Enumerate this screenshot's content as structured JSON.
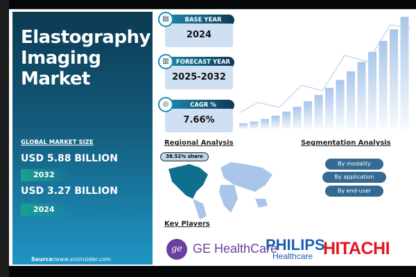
{
  "title": "Elastography Imaging Market",
  "title_lines": [
    "Elastography",
    "Imaging",
    "Market"
  ],
  "market_size": {
    "label": "GLOBAL MARKET SIZE",
    "forecast_value": "USD 5.88 BILLION",
    "forecast_year": "2032",
    "base_value": "USD 3.27 BILLION",
    "base_year": "2024"
  },
  "source": {
    "label": "Source:",
    "url": "www.snsinsider.com"
  },
  "stats": [
    {
      "label": "BASE YEAR",
      "value": "2024",
      "icon": "document-icon"
    },
    {
      "label": "FORECAST YEAR",
      "value": "2025-2032",
      "icon": "bar-chart-icon"
    },
    {
      "label": "CAGR %",
      "value": "7.66%",
      "icon": "growth-icon"
    }
  ],
  "regional": {
    "heading": "Regional Analysis",
    "share": "38.52% share",
    "highlight_color": "#0e6f8f"
  },
  "segmentation": {
    "heading": "Segmentation Analysis",
    "items": [
      "By modality",
      "By application",
      "By end-user"
    ]
  },
  "key_players": {
    "heading": "Key Players",
    "logos": [
      {
        "name": "GE HealthCare",
        "color": "#6b3fa0"
      },
      {
        "name": "PHILIPS",
        "sub": "Healthcare",
        "color": "#1a5fb4"
      },
      {
        "name": "HITACHI",
        "color": "#e3161f"
      }
    ]
  }
}
